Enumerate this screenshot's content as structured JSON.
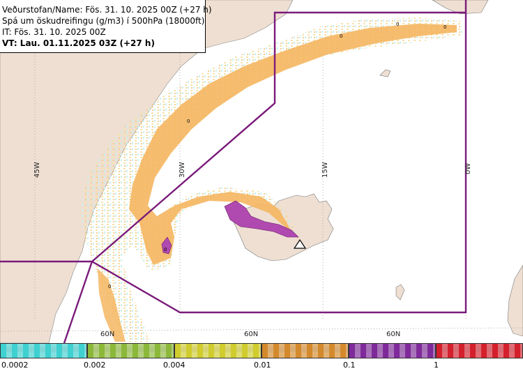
{
  "header": {
    "line1": "Veðurstofan/Name: Fös. 31. 10. 2025 00Z (+27 h)",
    "line2": "Spá um öskudreifingu (g/m3) í 500hPa (18000ft)",
    "line3": "IT: Fös. 31. 10. 2025 00Z",
    "line4": "VT: Lau. 01.11.2025 03Z (+27 h)"
  },
  "map_labels": {
    "lon_45w": "45W",
    "lon_30w": "30W",
    "lon_15w": "15W",
    "lon_0w": "0W",
    "lat_60n_a": "60N",
    "lat_60n_b": "60N",
    "lat_60n_c": "60N",
    "contour_zero": "0"
  },
  "legend": {
    "ticks": [
      "0.0002",
      "0.002",
      "0.004",
      "0.01",
      "0.1",
      "1"
    ],
    "colors": [
      "#3fd0d0",
      "#8cb83a",
      "#d0cc2e",
      "#d48a2c",
      "#7f2a9a",
      "#d4202c"
    ]
  },
  "colors": {
    "land": "#eedfd2",
    "boundary": "#7a1a7a",
    "ash_low": "#f5e0a0",
    "ash_mid": "#f5b660",
    "ash_high": "#b04ab0"
  }
}
